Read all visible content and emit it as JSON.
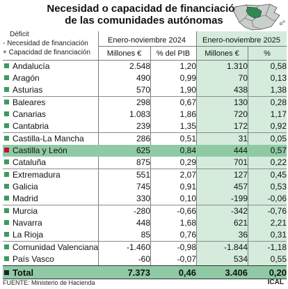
{
  "title": {
    "line1": "Necesidad o capacidad de financiación",
    "line2": "de las comunidades autónomas"
  },
  "legend": {
    "line1": "Déficit",
    "line2": "- Necesidad de financiación",
    "line3": "+ Capacidad de financiación"
  },
  "periods": {
    "p1": "Enero-noviembre 2024",
    "p2": "Enero-noviembre 2025"
  },
  "columns": {
    "c1": "Millones €",
    "c2": "% del PIB",
    "c3": "Millones €",
    "c4": "%"
  },
  "colors": {
    "marker": "#3f9a5e",
    "highlight": "#8fcaa5",
    "panel_2025": "#d5ecdd",
    "marker_highlight": "#c8102e"
  },
  "rows": [
    {
      "name": "Andalucía",
      "m24": "2.548",
      "p24": "1,20",
      "m25": "1.310",
      "p25": "0,58"
    },
    {
      "name": "Aragón",
      "m24": "490",
      "p24": "0,99",
      "m25": "70",
      "p25": "0,13"
    },
    {
      "name": "Asturias",
      "m24": "570",
      "p24": "1,90",
      "m25": "438",
      "p25": "1,38"
    },
    {
      "name": "Baleares",
      "m24": "298",
      "p24": "0,67",
      "m25": "130",
      "p25": "0,28"
    },
    {
      "name": "Canarias",
      "m24": "1.083",
      "p24": "1,86",
      "m25": "720",
      "p25": "1,17"
    },
    {
      "name": "Cantabria",
      "m24": "239",
      "p24": "1,35",
      "m25": "172",
      "p25": "0,92"
    },
    {
      "name": "Castilla-La Mancha",
      "m24": "286",
      "p24": "0,51",
      "m25": "31",
      "p25": "0,05"
    },
    {
      "name": "Castilla y León",
      "m24": "625",
      "p24": "0,84",
      "m25": "444",
      "p25": "0,57"
    },
    {
      "name": "Cataluña",
      "m24": "875",
      "p24": "0,29",
      "m25": "701",
      "p25": "0,22"
    },
    {
      "name": "Extremadura",
      "m24": "551",
      "p24": "2,07",
      "m25": "127",
      "p25": "0,45"
    },
    {
      "name": "Galicia",
      "m24": "745",
      "p24": "0,91",
      "m25": "457",
      "p25": "0,53"
    },
    {
      "name": "Madrid",
      "m24": "330",
      "p24": "0,10",
      "m25": "-199",
      "p25": "-0,06"
    },
    {
      "name": "Murcia",
      "m24": "-280",
      "p24": "-0,66",
      "m25": "-342",
      "p25": "-0,76"
    },
    {
      "name": "Navarra",
      "m24": "448",
      "p24": "1,68",
      "m25": "621",
      "p25": "2,21"
    },
    {
      "name": "La Rioja",
      "m24": "85",
      "p24": "0,76",
      "m25": "36",
      "p25": "0,31"
    },
    {
      "name": "Comunidad Valenciana",
      "m24": "-1.460",
      "p24": "-0,98",
      "m25": "-1.844",
      "p25": "-1,18"
    },
    {
      "name": "País Vasco",
      "m24": "-60",
      "p24": "-0,07",
      "m25": "534",
      "p25": "0,55"
    }
  ],
  "total": {
    "name": "Total",
    "m24": "7.373",
    "p24": "0,46",
    "m25": "3.406",
    "p25": "0,20"
  },
  "footer": {
    "source": "FUENTE: Ministerio de Hacienda",
    "brand": "ICAL"
  }
}
